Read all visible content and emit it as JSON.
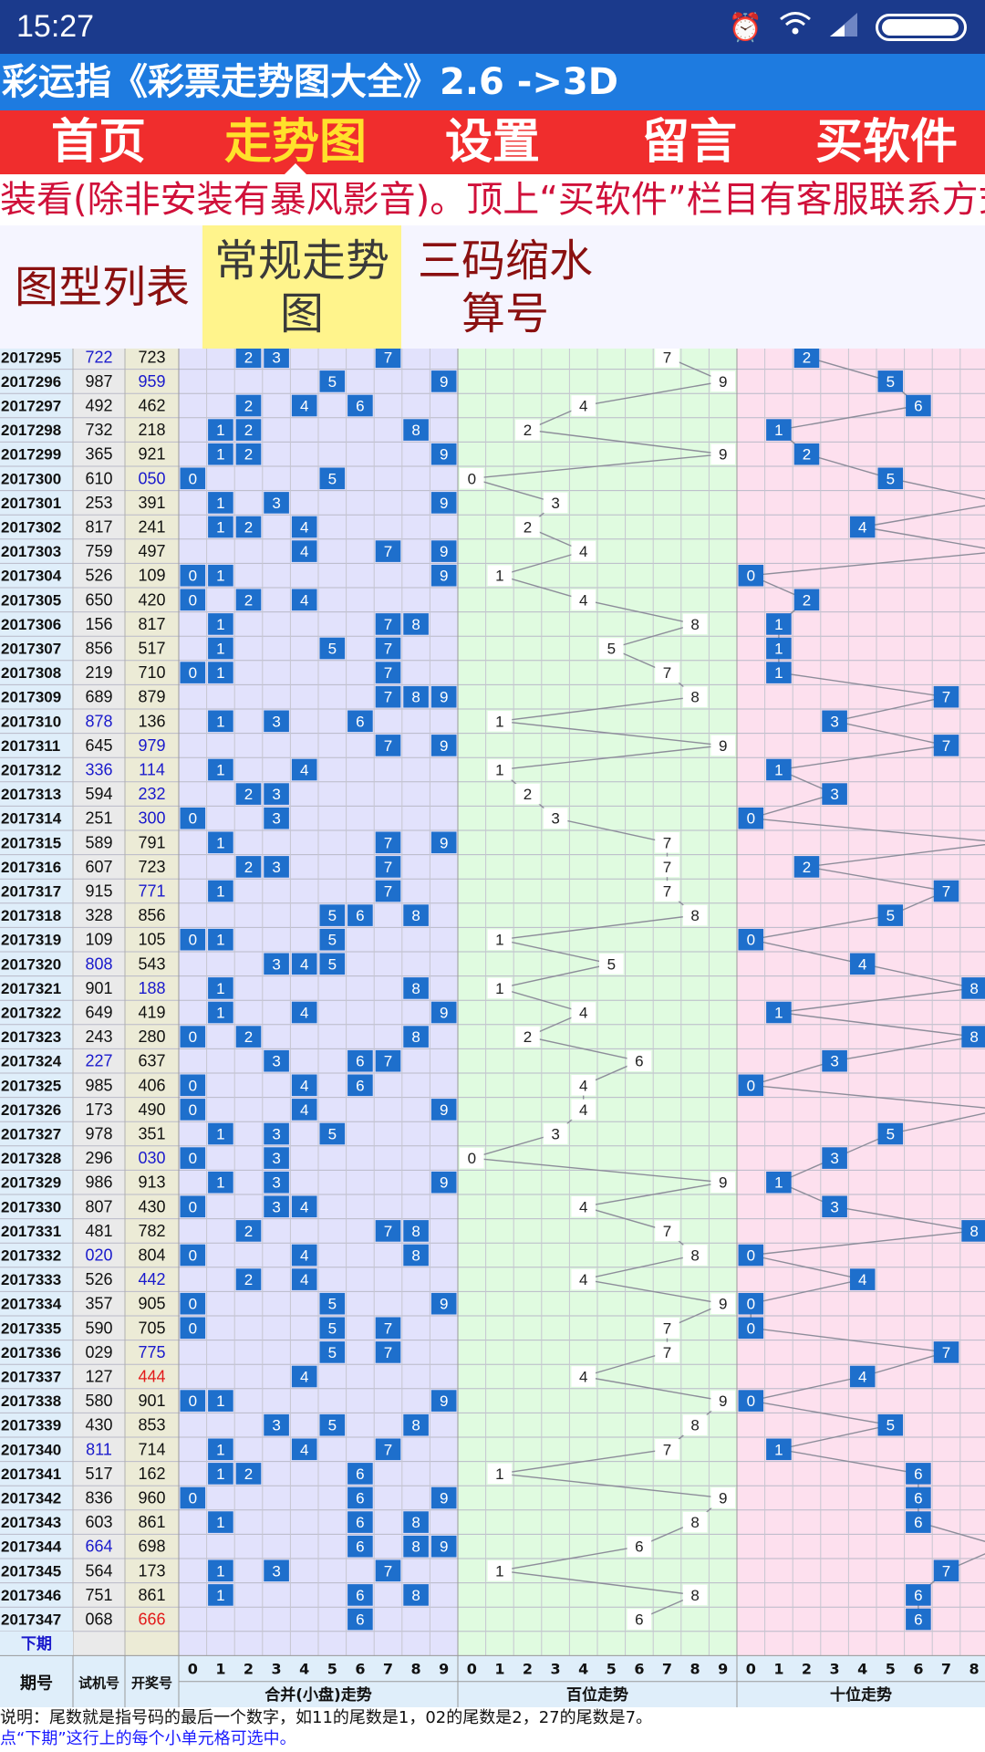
{
  "status_bar": {
    "time": "15:27",
    "icons": [
      "alarm-icon",
      "wifi-icon",
      "signal-icon",
      "battery-icon"
    ]
  },
  "app_title": "彩运指《彩票走势图大全》2.6 ->3D",
  "nav": [
    {
      "label": "首页",
      "active": false
    },
    {
      "label": "走势图",
      "active": true
    },
    {
      "label": "设置",
      "active": false
    },
    {
      "label": "留言",
      "active": false
    },
    {
      "label": "买软件",
      "active": false
    }
  ],
  "marquee": "装看(除非安装有暴风影音)。顶上“买软件”栏目有客服联系方式",
  "subtabs": [
    {
      "label": "图型列表",
      "active": false
    },
    {
      "label": "常规走势图",
      "active": true
    },
    {
      "label": "三码缩水算号",
      "active": false
    }
  ],
  "colors": {
    "accent_cell": "#1e6fcc",
    "red_number": "#e21a1a",
    "blue_number": "#1a1acc",
    "sum_zone": "#e2e2fc",
    "hundreds_zone": "#e0fbe0",
    "tens_zone": "#fde0ee"
  },
  "table": {
    "rows": [
      {
        "period": "2017295",
        "trial": "722",
        "win": "723",
        "trial_color": "blue"
      },
      {
        "period": "2017296",
        "trial": "987",
        "win": "959",
        "win_color": "blue"
      },
      {
        "period": "2017297",
        "trial": "492",
        "win": "462"
      },
      {
        "period": "2017298",
        "trial": "732",
        "win": "218"
      },
      {
        "period": "2017299",
        "trial": "365",
        "win": "921"
      },
      {
        "period": "2017300",
        "trial": "610",
        "win": "050",
        "win_color": "blue"
      },
      {
        "period": "2017301",
        "trial": "253",
        "win": "391"
      },
      {
        "period": "2017302",
        "trial": "817",
        "win": "241"
      },
      {
        "period": "2017303",
        "trial": "759",
        "win": "497"
      },
      {
        "period": "2017304",
        "trial": "526",
        "win": "109"
      },
      {
        "period": "2017305",
        "trial": "650",
        "win": "420"
      },
      {
        "period": "2017306",
        "trial": "156",
        "win": "817"
      },
      {
        "period": "2017307",
        "trial": "856",
        "win": "517"
      },
      {
        "period": "2017308",
        "trial": "219",
        "win": "710"
      },
      {
        "period": "2017309",
        "trial": "689",
        "win": "879"
      },
      {
        "period": "2017310",
        "trial": "878",
        "win": "136",
        "trial_color": "blue"
      },
      {
        "period": "2017311",
        "trial": "645",
        "win": "979",
        "win_color": "blue"
      },
      {
        "period": "2017312",
        "trial": "336",
        "win": "114",
        "trial_color": "blue",
        "win_color": "blue"
      },
      {
        "period": "2017313",
        "trial": "594",
        "win": "232",
        "win_color": "blue"
      },
      {
        "period": "2017314",
        "trial": "251",
        "win": "300",
        "win_color": "blue"
      },
      {
        "period": "2017315",
        "trial": "589",
        "win": "791"
      },
      {
        "period": "2017316",
        "trial": "607",
        "win": "723"
      },
      {
        "period": "2017317",
        "trial": "915",
        "win": "771",
        "win_color": "blue"
      },
      {
        "period": "2017318",
        "trial": "328",
        "win": "856"
      },
      {
        "period": "2017319",
        "trial": "109",
        "win": "105"
      },
      {
        "period": "2017320",
        "trial": "808",
        "win": "543",
        "trial_color": "blue"
      },
      {
        "period": "2017321",
        "trial": "901",
        "win": "188",
        "win_color": "blue"
      },
      {
        "period": "2017322",
        "trial": "649",
        "win": "419"
      },
      {
        "period": "2017323",
        "trial": "243",
        "win": "280"
      },
      {
        "period": "2017324",
        "trial": "227",
        "win": "637",
        "trial_color": "blue"
      },
      {
        "period": "2017325",
        "trial": "985",
        "win": "406"
      },
      {
        "period": "2017326",
        "trial": "173",
        "win": "490"
      },
      {
        "period": "2017327",
        "trial": "978",
        "win": "351"
      },
      {
        "period": "2017328",
        "trial": "296",
        "win": "030",
        "win_color": "blue"
      },
      {
        "period": "2017329",
        "trial": "986",
        "win": "913"
      },
      {
        "period": "2017330",
        "trial": "807",
        "win": "430"
      },
      {
        "period": "2017331",
        "trial": "481",
        "win": "782"
      },
      {
        "period": "2017332",
        "trial": "020",
        "win": "804",
        "trial_color": "blue"
      },
      {
        "period": "2017333",
        "trial": "526",
        "win": "442",
        "win_color": "blue"
      },
      {
        "period": "2017334",
        "trial": "357",
        "win": "905"
      },
      {
        "period": "2017335",
        "trial": "590",
        "win": "705"
      },
      {
        "period": "2017336",
        "trial": "029",
        "win": "775",
        "win_color": "blue"
      },
      {
        "period": "2017337",
        "trial": "127",
        "win": "444",
        "win_color": "red"
      },
      {
        "period": "2017338",
        "trial": "580",
        "win": "901"
      },
      {
        "period": "2017339",
        "trial": "430",
        "win": "853"
      },
      {
        "period": "2017340",
        "trial": "811",
        "win": "714",
        "trial_color": "blue"
      },
      {
        "period": "2017341",
        "trial": "517",
        "win": "162"
      },
      {
        "period": "2017342",
        "trial": "836",
        "win": "960"
      },
      {
        "period": "2017343",
        "trial": "603",
        "win": "861"
      },
      {
        "period": "2017344",
        "trial": "664",
        "win": "698",
        "trial_color": "blue"
      },
      {
        "period": "2017345",
        "trial": "564",
        "win": "173"
      },
      {
        "period": "2017346",
        "trial": "751",
        "win": "861"
      },
      {
        "period": "2017347",
        "trial": "068",
        "win": "666",
        "win_color": "red"
      }
    ],
    "next_period_label": "下期",
    "headers": {
      "period": "期号",
      "trial": "试机号",
      "win": "开奖号"
    },
    "digits": [
      "0",
      "1",
      "2",
      "3",
      "4",
      "5",
      "6",
      "7",
      "8",
      "9"
    ],
    "sections": [
      "合并(小盘)走势",
      "百位走势",
      "十位走势"
    ]
  },
  "footer": {
    "note": "说明：尾数就是指号码的最后一个数字，如11的尾数是1，02的尾数是2，27的尾数是7。",
    "hint": "点“下期”这行上的每个小单元格可选中。"
  }
}
